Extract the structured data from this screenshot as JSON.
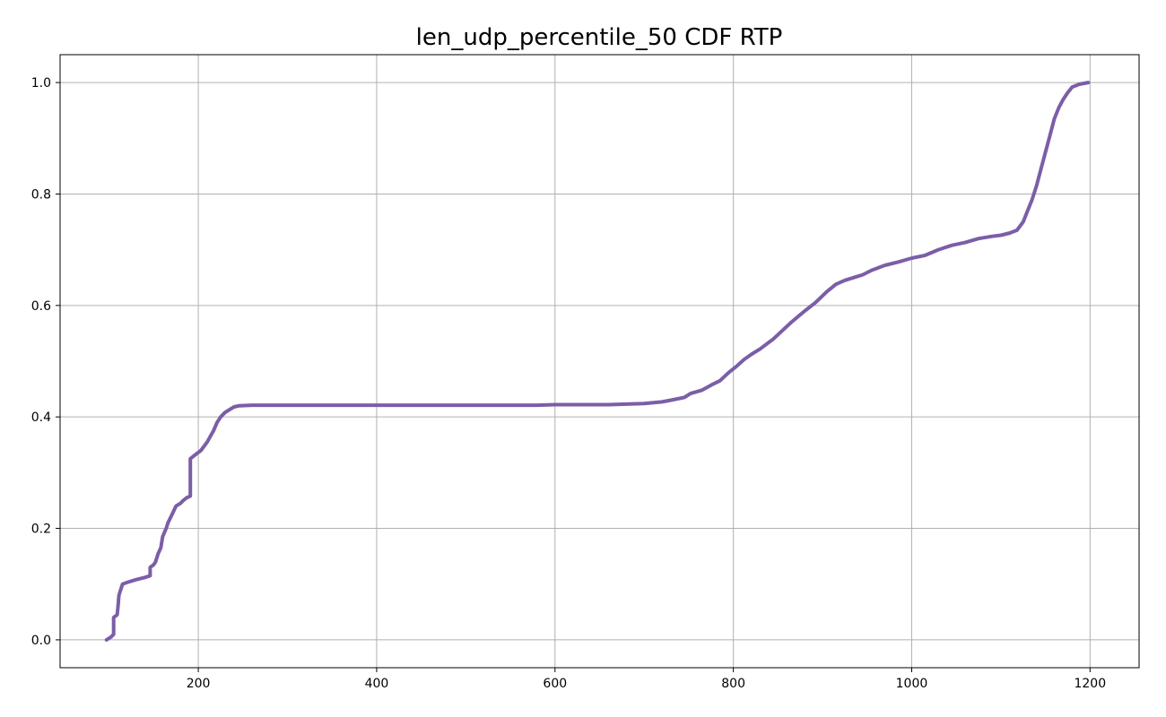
{
  "chart_data": {
    "type": "line",
    "title": "len_udp_percentile_50 CDF RTP",
    "xlabel": "",
    "ylabel": "",
    "xlim": [
      45,
      1255
    ],
    "ylim": [
      -0.05,
      1.05
    ],
    "grid": true,
    "legend": "none",
    "line_color": "#7b5ea7",
    "grid_color": "#b0b0b0",
    "x_ticks": [
      {
        "value": 200,
        "label": "200"
      },
      {
        "value": 400,
        "label": "400"
      },
      {
        "value": 600,
        "label": "600"
      },
      {
        "value": 800,
        "label": "800"
      },
      {
        "value": 1000,
        "label": "1000"
      },
      {
        "value": 1200,
        "label": "1200"
      }
    ],
    "y_ticks": [
      {
        "value": 0.0,
        "label": "0.0"
      },
      {
        "value": 0.2,
        "label": "0.2"
      },
      {
        "value": 0.4,
        "label": "0.4"
      },
      {
        "value": 0.6,
        "label": "0.6"
      },
      {
        "value": 0.8,
        "label": "0.8"
      },
      {
        "value": 1.0,
        "label": "1.0"
      }
    ],
    "series": [
      {
        "points": [
          [
            97,
            0.0
          ],
          [
            102,
            0.005
          ],
          [
            105,
            0.01
          ],
          [
            105,
            0.04
          ],
          [
            109,
            0.045
          ],
          [
            110,
            0.06
          ],
          [
            111,
            0.08
          ],
          [
            113,
            0.09
          ],
          [
            115,
            0.1
          ],
          [
            120,
            0.103
          ],
          [
            130,
            0.108
          ],
          [
            140,
            0.112
          ],
          [
            146,
            0.115
          ],
          [
            146,
            0.13
          ],
          [
            150,
            0.135
          ],
          [
            152,
            0.14
          ],
          [
            155,
            0.155
          ],
          [
            158,
            0.165
          ],
          [
            160,
            0.185
          ],
          [
            164,
            0.2
          ],
          [
            166,
            0.21
          ],
          [
            169,
            0.22
          ],
          [
            172,
            0.23
          ],
          [
            175,
            0.24
          ],
          [
            180,
            0.245
          ],
          [
            183,
            0.25
          ],
          [
            187,
            0.255
          ],
          [
            191,
            0.258
          ],
          [
            191,
            0.325
          ],
          [
            195,
            0.33
          ],
          [
            203,
            0.34
          ],
          [
            210,
            0.355
          ],
          [
            217,
            0.375
          ],
          [
            221,
            0.39
          ],
          [
            225,
            0.4
          ],
          [
            230,
            0.408
          ],
          [
            235,
            0.413
          ],
          [
            240,
            0.418
          ],
          [
            246,
            0.42
          ],
          [
            260,
            0.421
          ],
          [
            300,
            0.421
          ],
          [
            400,
            0.421
          ],
          [
            500,
            0.421
          ],
          [
            580,
            0.421
          ],
          [
            600,
            0.422
          ],
          [
            660,
            0.422
          ],
          [
            700,
            0.424
          ],
          [
            720,
            0.427
          ],
          [
            730,
            0.43
          ],
          [
            745,
            0.435
          ],
          [
            752,
            0.442
          ],
          [
            765,
            0.448
          ],
          [
            775,
            0.457
          ],
          [
            785,
            0.465
          ],
          [
            795,
            0.48
          ],
          [
            803,
            0.49
          ],
          [
            812,
            0.503
          ],
          [
            820,
            0.512
          ],
          [
            830,
            0.522
          ],
          [
            845,
            0.54
          ],
          [
            855,
            0.555
          ],
          [
            865,
            0.57
          ],
          [
            880,
            0.59
          ],
          [
            892,
            0.605
          ],
          [
            905,
            0.625
          ],
          [
            915,
            0.638
          ],
          [
            925,
            0.645
          ],
          [
            935,
            0.65
          ],
          [
            945,
            0.655
          ],
          [
            955,
            0.663
          ],
          [
            970,
            0.672
          ],
          [
            985,
            0.678
          ],
          [
            1000,
            0.685
          ],
          [
            1015,
            0.69
          ],
          [
            1030,
            0.7
          ],
          [
            1045,
            0.708
          ],
          [
            1060,
            0.713
          ],
          [
            1075,
            0.72
          ],
          [
            1090,
            0.724
          ],
          [
            1100,
            0.726
          ],
          [
            1110,
            0.73
          ],
          [
            1118,
            0.735
          ],
          [
            1125,
            0.75
          ],
          [
            1130,
            0.77
          ],
          [
            1135,
            0.79
          ],
          [
            1140,
            0.815
          ],
          [
            1145,
            0.845
          ],
          [
            1150,
            0.875
          ],
          [
            1155,
            0.905
          ],
          [
            1160,
            0.935
          ],
          [
            1165,
            0.955
          ],
          [
            1170,
            0.97
          ],
          [
            1175,
            0.982
          ],
          [
            1180,
            0.992
          ],
          [
            1188,
            0.997
          ],
          [
            1198,
            1.0
          ]
        ]
      }
    ]
  }
}
